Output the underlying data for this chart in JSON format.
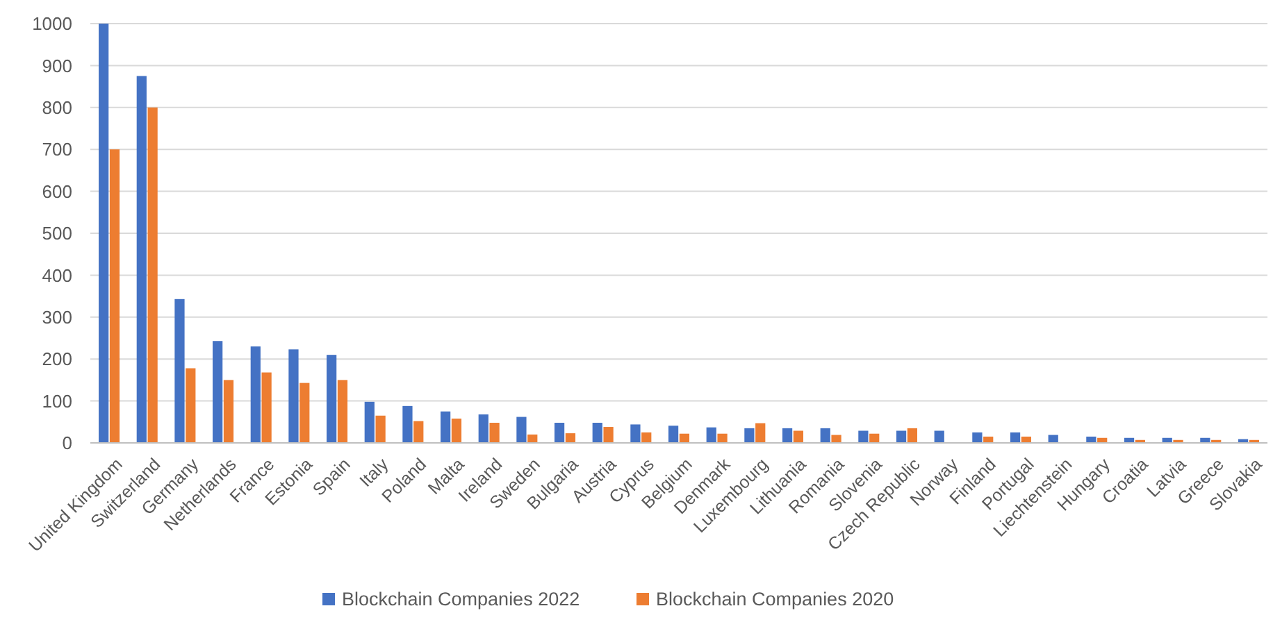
{
  "chart_data": {
    "type": "bar",
    "categories": [
      "United Kingdom",
      "Switzerland",
      "Germany",
      "Netherlands",
      "France",
      "Estonia",
      "Spain",
      "Italy",
      "Poland",
      "Malta",
      "Ireland",
      "Sweden",
      "Bulgaria",
      "Austria",
      "Cyprus",
      "Belgium",
      "Denmark",
      "Luxembourg",
      "Lithuania",
      "Romania",
      "Slovenia",
      "Czech Republic",
      "Norway",
      "Finland",
      "Portugal",
      "Liechtenstein",
      "Hungary",
      "Croatia",
      "Latvia",
      "Greece",
      "Slovakia"
    ],
    "series": [
      {
        "name": "Blockchain Companies 2022",
        "color": "#4472c4",
        "values": [
          1000,
          875,
          343,
          243,
          230,
          223,
          210,
          98,
          88,
          75,
          68,
          62,
          48,
          48,
          44,
          41,
          37,
          35,
          35,
          35,
          29,
          29,
          29,
          25,
          25,
          19,
          15,
          12,
          12,
          12,
          9
        ]
      },
      {
        "name": "Blockchain Companies 2020",
        "color": "#ed7d31",
        "values": [
          700,
          800,
          178,
          150,
          168,
          143,
          150,
          65,
          52,
          58,
          48,
          20,
          23,
          38,
          25,
          22,
          22,
          47,
          29,
          19,
          22,
          35,
          null,
          15,
          15,
          null,
          12,
          7,
          7,
          7,
          7
        ]
      }
    ],
    "ylim": [
      0,
      1000
    ],
    "yticks": [
      0,
      100,
      200,
      300,
      400,
      500,
      600,
      700,
      800,
      900,
      1000
    ],
    "grid": "y",
    "legend": "bottom"
  }
}
